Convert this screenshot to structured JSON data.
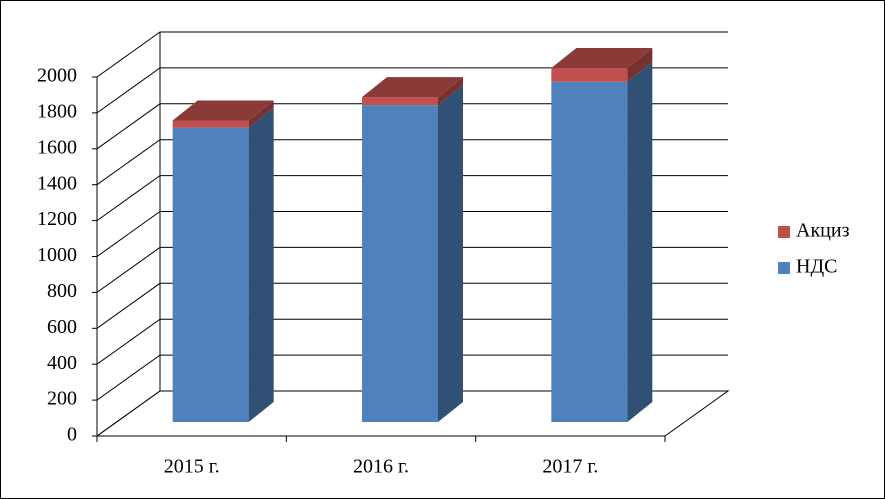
{
  "chart_data": {
    "type": "bar3d_stacked",
    "categories": [
      "2015 г.",
      "2016 г.",
      "2017 г."
    ],
    "series": [
      {
        "name": "НДС",
        "color": "#4f81bd",
        "values": [
          1640,
          1765,
          1895
        ]
      },
      {
        "name": "Акциз",
        "color": "#c0504d",
        "values": [
          40,
          45,
          77
        ]
      }
    ],
    "ylim": [
      0,
      2000
    ],
    "yticks": [
      0,
      200,
      400,
      600,
      800,
      1000,
      1200,
      1400,
      1600,
      1800,
      2000
    ],
    "grid": true,
    "legend": "right"
  }
}
